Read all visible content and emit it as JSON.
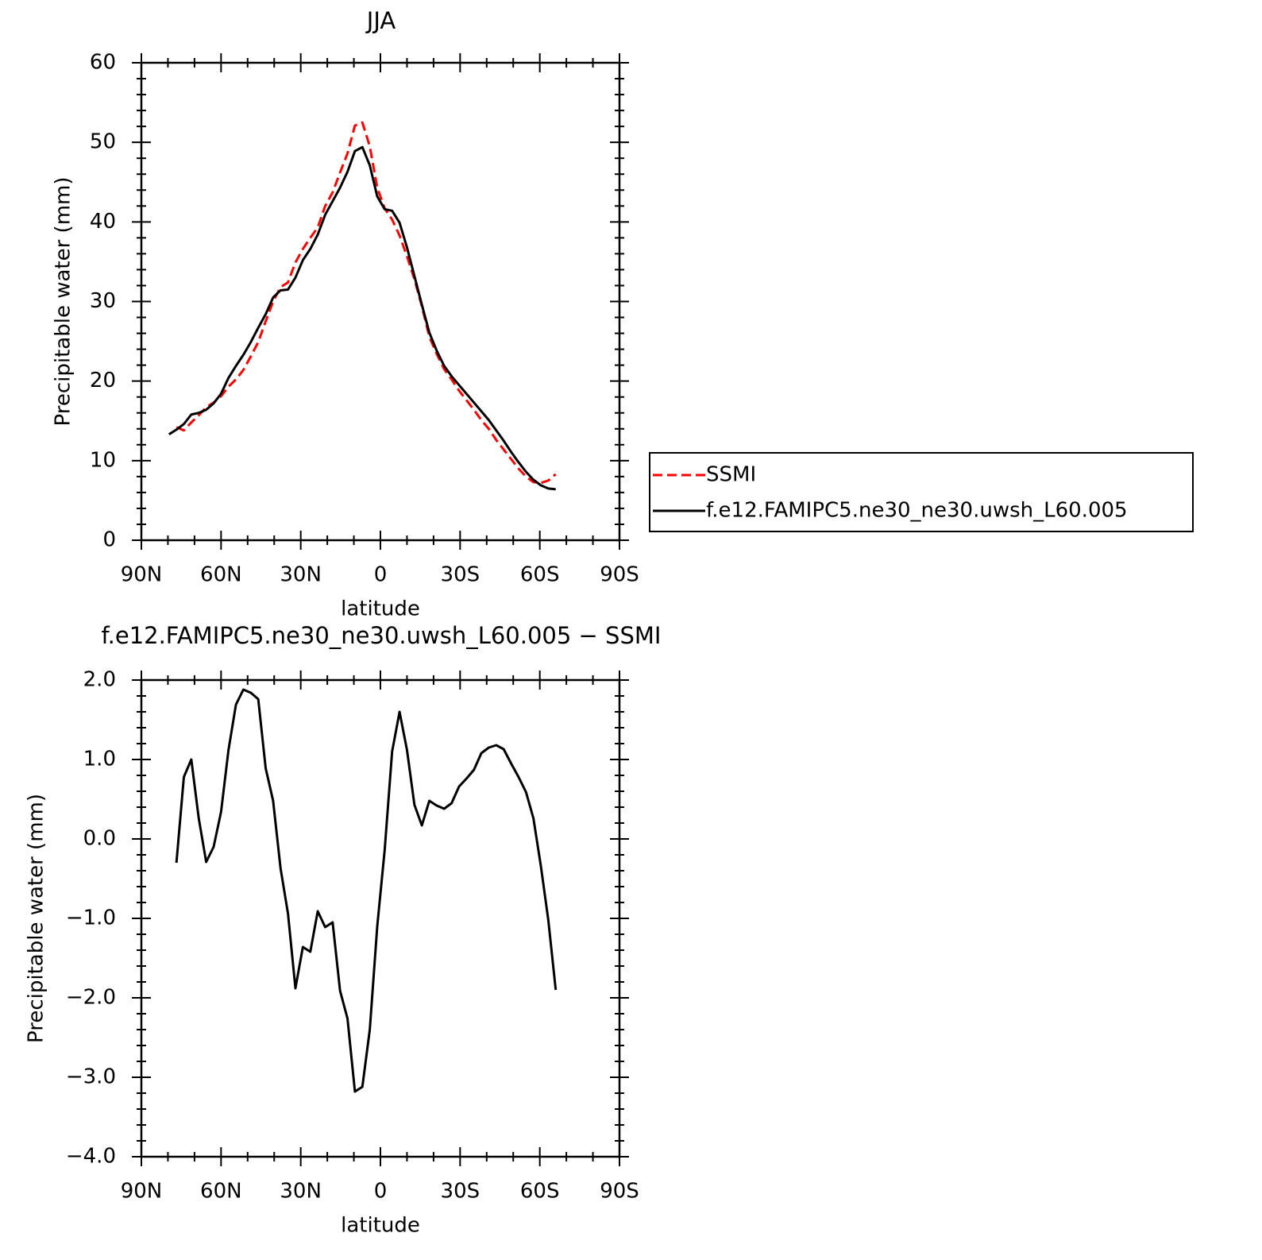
{
  "chart_data": [
    {
      "type": "line",
      "title": "JJA",
      "xlabel": "latitude",
      "ylabel": "Precipitable water (mm)",
      "x": [
        79.6,
        76.8,
        74.0,
        71.2,
        68.4,
        65.6,
        62.8,
        60.0,
        57.2,
        54.4,
        51.6,
        48.8,
        46.0,
        43.2,
        40.4,
        37.6,
        34.8,
        32.0,
        29.2,
        26.4,
        23.6,
        20.8,
        18.0,
        15.2,
        12.4,
        9.6,
        6.8,
        4.0,
        1.2,
        -1.6,
        -4.4,
        -7.2,
        -10.0,
        -12.8,
        -15.6,
        -18.4,
        -21.2,
        -24.0,
        -26.8,
        -29.6,
        -32.4,
        -35.2,
        -38.0,
        -40.8,
        -43.6,
        -46.4,
        -49.2,
        -52.0,
        -54.8,
        -57.6,
        -60.4,
        -63.2,
        -66.0
      ],
      "series": [
        {
          "name": "SSMI",
          "color": "#ff0000",
          "style": "dashed",
          "values": [
            null,
            14.2,
            13.8,
            14.8,
            15.7,
            16.7,
            17.3,
            18.1,
            19.3,
            20.2,
            21.4,
            23.1,
            24.9,
            27.5,
            30.0,
            31.8,
            32.4,
            34.9,
            36.6,
            38.0,
            39.3,
            42.0,
            43.7,
            46.2,
            48.6,
            52.1,
            52.5,
            49.5,
            44.3,
            41.7,
            40.3,
            38.3,
            35.7,
            32.8,
            29.4,
            25.6,
            23.4,
            21.5,
            20.2,
            18.8,
            17.6,
            16.4,
            15.1,
            14.0,
            12.6,
            11.4,
            10.2,
            9.0,
            8.0,
            7.3,
            7.2,
            7.5,
            8.3
          ]
        },
        {
          "name": "f.e12.FAMIPC5.ne30_ne30.uwsh_L60.005",
          "color": "#000000",
          "style": "solid",
          "values": [
            13.3,
            13.9,
            14.6,
            15.8,
            16.0,
            16.4,
            17.2,
            18.4,
            20.4,
            21.9,
            23.3,
            24.9,
            26.7,
            28.4,
            30.5,
            31.4,
            31.5,
            33.0,
            35.2,
            36.6,
            38.4,
            40.9,
            42.6,
            44.3,
            46.3,
            48.9,
            49.4,
            47.1,
            43.2,
            41.6,
            41.4,
            39.9,
            36.8,
            33.2,
            29.6,
            26.1,
            23.8,
            21.9,
            20.6,
            19.5,
            18.4,
            17.3,
            16.2,
            15.1,
            13.8,
            12.5,
            11.1,
            9.8,
            8.6,
            7.6,
            6.9,
            6.5,
            6.4
          ]
        }
      ],
      "xlim": [
        90,
        -90
      ],
      "xticks": [
        {
          "value": 90,
          "label": "90N"
        },
        {
          "value": 60,
          "label": "60N"
        },
        {
          "value": 30,
          "label": "30N"
        },
        0,
        {
          "value": -30,
          "label": "30S"
        },
        {
          "value": -60,
          "label": "60S"
        },
        {
          "value": -90,
          "label": "90S"
        }
      ],
      "ylim": [
        0,
        60
      ],
      "yticks": [
        0,
        10,
        20,
        30,
        40,
        50,
        60
      ],
      "legend": "right"
    },
    {
      "type": "line",
      "title": "f.e12.FAMIPC5.ne30_ne30.uwsh_L60.005 − SSMI",
      "xlabel": "latitude",
      "ylabel": "Precipitable water (mm)",
      "x": [
        76.8,
        74.0,
        71.2,
        68.4,
        65.6,
        62.8,
        60.0,
        57.2,
        54.4,
        51.6,
        48.8,
        46.0,
        43.2,
        40.4,
        37.6,
        34.8,
        32.0,
        29.2,
        26.4,
        23.6,
        20.8,
        18.0,
        15.2,
        12.4,
        9.6,
        6.8,
        4.0,
        1.2,
        -1.6,
        -4.4,
        -7.2,
        -10.0,
        -12.8,
        -15.6,
        -18.4,
        -21.2,
        -24.0,
        -26.8,
        -29.6,
        -32.4,
        -35.2,
        -38.0,
        -40.8,
        -43.6,
        -46.4,
        -49.2,
        -52.0,
        -54.8,
        -57.6,
        -60.4,
        -63.2,
        -66.0
      ],
      "values": [
        -0.3,
        0.78,
        1.0,
        0.26,
        -0.29,
        -0.1,
        0.34,
        1.12,
        1.69,
        1.88,
        1.84,
        1.76,
        0.89,
        0.48,
        -0.37,
        -0.94,
        -1.88,
        -1.36,
        -1.42,
        -0.91,
        -1.11,
        -1.05,
        -1.91,
        -2.26,
        -3.18,
        -3.12,
        -2.4,
        -1.1,
        -0.14,
        1.1,
        1.6,
        1.12,
        0.43,
        0.17,
        0.48,
        0.42,
        0.38,
        0.45,
        0.66,
        0.76,
        0.87,
        1.08,
        1.15,
        1.18,
        1.13,
        0.95,
        0.78,
        0.59,
        0.26,
        -0.34,
        -1.02,
        -1.9
      ],
      "color": "#000000",
      "xlim": [
        90,
        -90
      ],
      "xticks": [
        {
          "value": 90,
          "label": "90N"
        },
        {
          "value": 60,
          "label": "60N"
        },
        {
          "value": 30,
          "label": "30N"
        },
        0,
        {
          "value": -30,
          "label": "30S"
        },
        {
          "value": -60,
          "label": "60S"
        },
        {
          "value": -90,
          "label": "90S"
        }
      ],
      "ylim": [
        -4,
        2
      ],
      "yticks": [
        {
          "value": -4,
          "label": "−4.0"
        },
        {
          "value": -3,
          "label": "−3.0"
        },
        {
          "value": -2,
          "label": "−2.0"
        },
        {
          "value": -1,
          "label": "−1.0"
        },
        {
          "value": 0,
          "label": "0.0"
        },
        {
          "value": 1,
          "label": "1.0"
        },
        {
          "value": 2,
          "label": "2.0"
        }
      ]
    }
  ]
}
